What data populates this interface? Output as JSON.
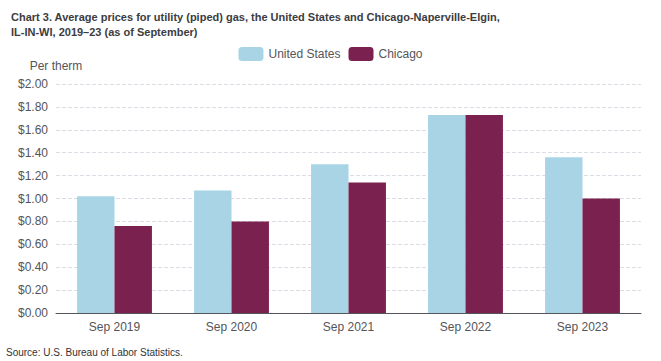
{
  "chart_data": {
    "type": "bar",
    "title": "Chart 3. Average prices for utility (piped) gas, the United States and Chicago-Naperville-Elgin,\nIL-IN-WI, 2019–23 (as of September)",
    "y_label": "Per therm",
    "source": "Source: U.S. Bureau of Labor Statistics.",
    "categories": [
      "Sep 2019",
      "Sep 2020",
      "Sep 2021",
      "Sep 2022",
      "Sep 2023"
    ],
    "series": [
      {
        "name": "United States",
        "color": "#a8d4e6",
        "values": [
          1.02,
          1.07,
          1.3,
          1.73,
          1.36
        ]
      },
      {
        "name": "Chicago",
        "color": "#7b2150",
        "values": [
          0.76,
          0.8,
          1.14,
          1.73,
          1.0
        ]
      }
    ],
    "ylim": [
      0.0,
      2.0
    ],
    "yticks": [
      {
        "value": 0.0,
        "label": "$0.00"
      },
      {
        "value": 0.2,
        "label": "$0.20"
      },
      {
        "value": 0.4,
        "label": "$0.40"
      },
      {
        "value": 0.6,
        "label": "$0.60"
      },
      {
        "value": 0.8,
        "label": "$0.80"
      },
      {
        "value": 1.0,
        "label": "$1.00"
      },
      {
        "value": 1.2,
        "label": "$1.20"
      },
      {
        "value": 1.4,
        "label": "$1.40"
      },
      {
        "value": 1.6,
        "label": "$1.60"
      },
      {
        "value": 1.8,
        "label": "$1.80"
      },
      {
        "value": 2.0,
        "label": "$2.00"
      }
    ],
    "grid": true,
    "legend": "top"
  }
}
